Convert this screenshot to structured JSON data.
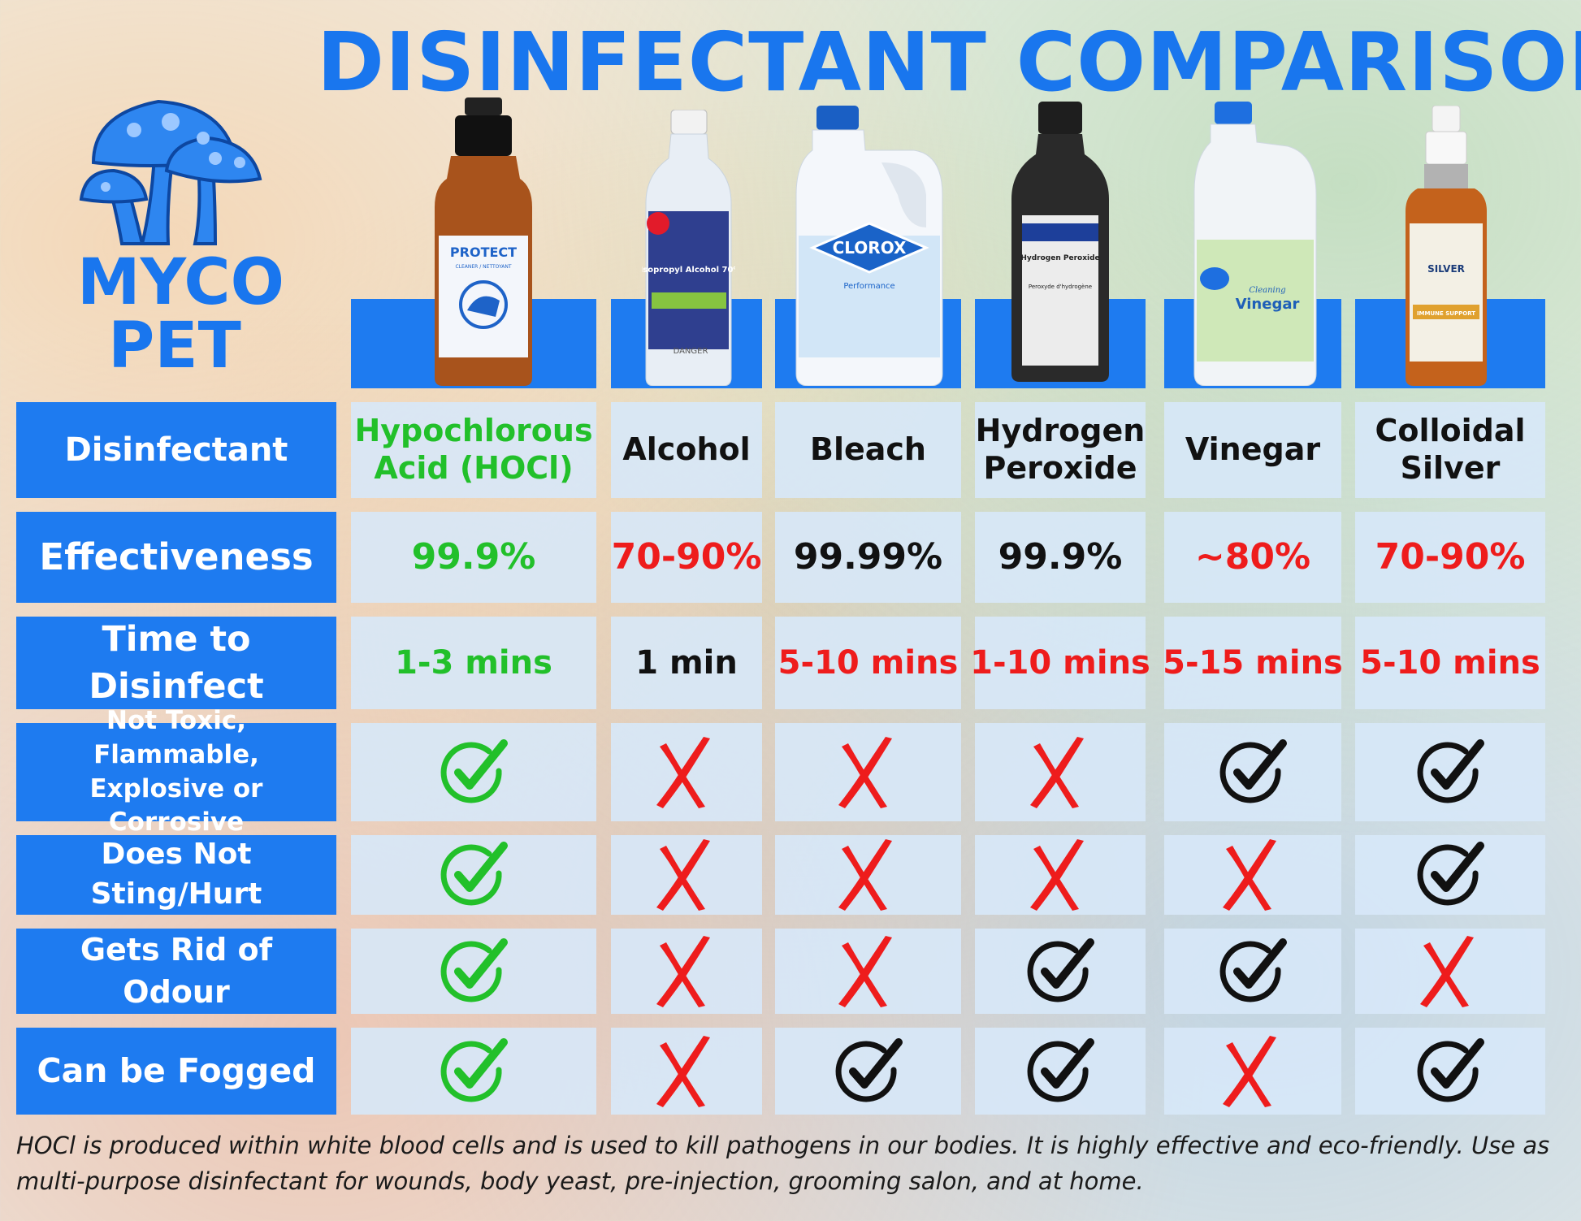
{
  "title": "DISINFECTANT COMPARISON",
  "logo": {
    "line1": "MYCO",
    "line2": "PET",
    "icon": "mushroom-icon"
  },
  "products": [
    {
      "name": "Hypochlorous Acid (HOCl)",
      "bottle_label": "PROTECT",
      "bottle_sub": "CLEANER / NETTOYANT",
      "color": "#22c02a"
    },
    {
      "name": "Alcohol",
      "bottle_label": "Isopropyl Alcohol 70%",
      "bottle_sub": "DANGER",
      "color": "#111111"
    },
    {
      "name": "Bleach",
      "bottle_label": "CLOROX",
      "bottle_sub": "Performance",
      "color": "#111111"
    },
    {
      "name": "Hydrogen Peroxide",
      "bottle_label": "Hydrogen Peroxide",
      "bottle_sub": "Peroxyde d'hydrogène",
      "color": "#111111"
    },
    {
      "name": "Vinegar",
      "bottle_label": "Vinegar",
      "bottle_sub": "Cleaning",
      "color": "#111111"
    },
    {
      "name": "Colloidal Silver",
      "bottle_label": "SILVER",
      "bottle_sub": "IMMUNE SUPPORT",
      "color": "#111111"
    }
  ],
  "rows": [
    {
      "label": "Disinfectant",
      "type": "names"
    },
    {
      "label": "Effectiveness",
      "type": "text",
      "values": [
        {
          "text": "99.9%",
          "color": "green"
        },
        {
          "text": "70-90%",
          "color": "red"
        },
        {
          "text": "99.99%",
          "color": "black"
        },
        {
          "text": "99.9%",
          "color": "black"
        },
        {
          "text": "~80%",
          "color": "red"
        },
        {
          "text": "70-90%",
          "color": "red"
        }
      ]
    },
    {
      "label": "Time to Disinfect",
      "type": "text",
      "values": [
        {
          "text": "1-3 mins",
          "color": "green"
        },
        {
          "text": "1 min",
          "color": "black"
        },
        {
          "text": "5-10 mins",
          "color": "red"
        },
        {
          "text": "1-10 mins",
          "color": "red"
        },
        {
          "text": "5-15 mins",
          "color": "red"
        },
        {
          "text": "5-10 mins",
          "color": "red"
        }
      ]
    },
    {
      "label": "Not Toxic, Flammable, Explosive or Corrosive",
      "type": "icon",
      "values": [
        "check-green",
        "cross",
        "cross",
        "cross",
        "check-black",
        "check-black"
      ]
    },
    {
      "label": "Does Not Sting/Hurt",
      "type": "icon",
      "values": [
        "check-green",
        "cross",
        "cross",
        "cross",
        "cross",
        "check-black"
      ]
    },
    {
      "label": "Gets Rid of Odour",
      "type": "icon",
      "values": [
        "check-green",
        "cross",
        "cross",
        "check-black",
        "check-black",
        "cross"
      ]
    },
    {
      "label": "Can be Fogged",
      "type": "icon",
      "values": [
        "check-green",
        "cross",
        "check-black",
        "check-black",
        "cross",
        "check-black"
      ]
    }
  ],
  "footer": "HOCl is produced within white blood cells and is used to kill pathogens in our bodies. It is highly effective and eco-friendly. Use as multi-purpose disinfectant for wounds, body yeast, pre-injection, grooming salon, and at home."
}
